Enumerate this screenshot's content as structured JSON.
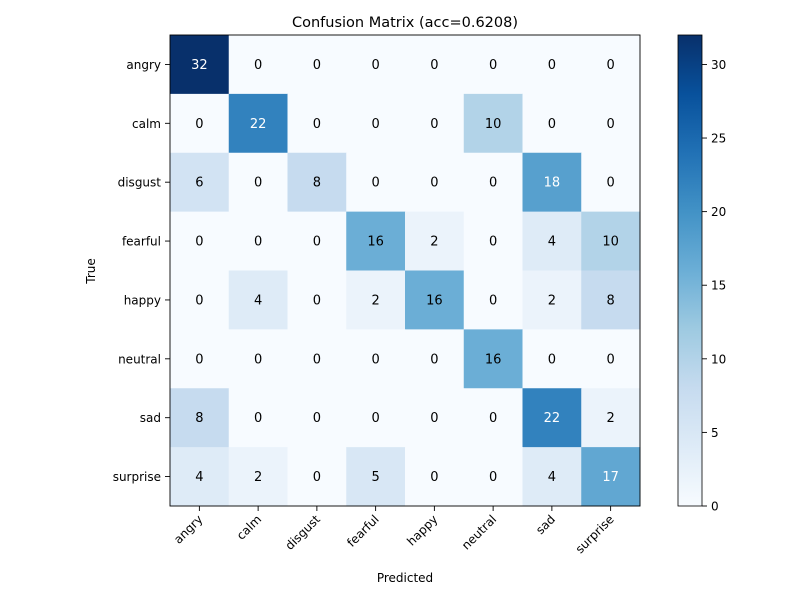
{
  "chart_data": {
    "type": "heatmap",
    "title": "Confusion Matrix (acc=0.6208)",
    "xlabel": "Predicted",
    "ylabel": "True",
    "x_categories": [
      "angry",
      "calm",
      "disgust",
      "fearful",
      "happy",
      "neutral",
      "sad",
      "surprise"
    ],
    "y_categories": [
      "angry",
      "calm",
      "disgust",
      "fearful",
      "happy",
      "neutral",
      "sad",
      "surprise"
    ],
    "matrix": [
      [
        32,
        0,
        0,
        0,
        0,
        0,
        0,
        0
      ],
      [
        0,
        22,
        0,
        0,
        0,
        10,
        0,
        0
      ],
      [
        6,
        0,
        8,
        0,
        0,
        0,
        18,
        0
      ],
      [
        0,
        0,
        0,
        16,
        2,
        0,
        4,
        10
      ],
      [
        0,
        4,
        0,
        2,
        16,
        0,
        2,
        8
      ],
      [
        0,
        0,
        0,
        0,
        0,
        16,
        0,
        0
      ],
      [
        8,
        0,
        0,
        0,
        0,
        0,
        22,
        2
      ],
      [
        4,
        2,
        0,
        5,
        0,
        0,
        4,
        17
      ]
    ],
    "colormap": "Blues",
    "vmin": 0,
    "vmax": 32,
    "colorbar_ticks": [
      0,
      5,
      10,
      15,
      20,
      25,
      30
    ],
    "colors": {
      "low": "#f7fbff",
      "high": "#08306b",
      "text_dark": "#000000",
      "text_light": "#ffffff"
    }
  }
}
